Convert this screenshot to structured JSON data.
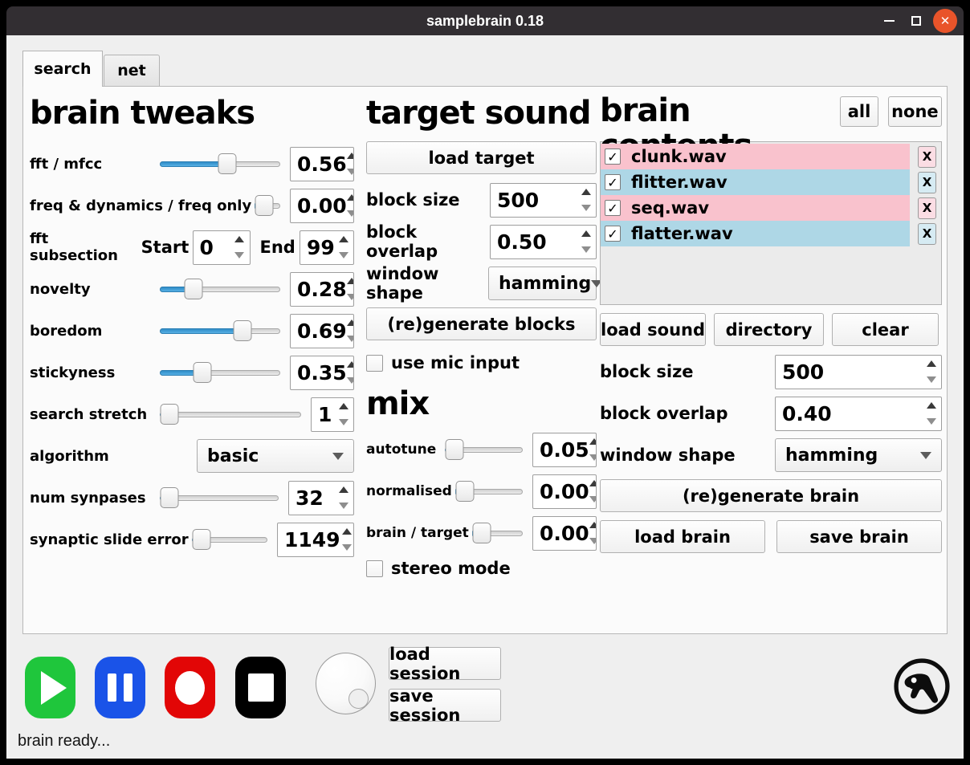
{
  "window": {
    "title": "samplebrain 0.18"
  },
  "icons": {
    "minimize": "minimize-icon",
    "maximize": "maximize-icon",
    "close": "✕",
    "checkmark": "✓",
    "remove": "X",
    "play": "play-triangle",
    "pause": "pause-bars",
    "record": "record-circle",
    "stop": "stop-square",
    "knob": "volume-knob",
    "logo": "aphex-twin-logo"
  },
  "tabs": {
    "search": "search",
    "net": "net"
  },
  "brain_tweaks": {
    "title": "brain tweaks",
    "fft_mfcc": {
      "label": "fft / mfcc",
      "value": "0.56",
      "fill": 56
    },
    "freq_dynamics": {
      "label": "freq & dynamics / freq only",
      "value": "0.00",
      "fill": 0
    },
    "fft_subsection": {
      "label": "fft subsection",
      "start_label": "Start",
      "start_value": "0",
      "end_label": "End",
      "end_value": "99"
    },
    "novelty": {
      "label": "novelty",
      "value": "0.28",
      "fill": 28
    },
    "boredom": {
      "label": "boredom",
      "value": "0.69",
      "fill": 69
    },
    "stickyness": {
      "label": "stickyness",
      "value": "0.35",
      "fill": 35
    },
    "search_stretch": {
      "label": "search stretch",
      "value": "1",
      "fill": 4
    },
    "algorithm": {
      "label": "algorithm",
      "value": "basic"
    },
    "num_synpases": {
      "label": "num synpases",
      "value": "32",
      "fill": 4
    },
    "synaptic_slide_error": {
      "label": "synaptic slide error",
      "value": "1149",
      "fill": 9
    }
  },
  "target_sound": {
    "title": "target sound",
    "load_target_label": "load target",
    "block_size": {
      "label": "block size",
      "value": "500"
    },
    "block_overlap": {
      "label": "block overlap",
      "value": "0.50"
    },
    "window_shape": {
      "label": "window shape",
      "value": "hamming"
    },
    "regenerate_label": "(re)generate blocks",
    "use_mic_label": "use mic input"
  },
  "mix": {
    "title": "mix",
    "autotune": {
      "label": "autotune",
      "value": "0.05",
      "fill": 7
    },
    "normalised": {
      "label": "normalised",
      "value": "0.00",
      "fill": 0
    },
    "brain_target": {
      "label": "brain / target",
      "value": "0.00",
      "fill": 0
    },
    "stereo_label": "stereo mode"
  },
  "brain_contents": {
    "title": "brain contents",
    "all_label": "all",
    "none_label": "none",
    "items": [
      {
        "name": "clunk.wav",
        "checked": true,
        "row_color": "#f9c2cd"
      },
      {
        "name": "flitter.wav",
        "checked": true,
        "row_color": "#aed7e6"
      },
      {
        "name": "seq.wav",
        "checked": true,
        "row_color": "#f9c2cd"
      },
      {
        "name": "flatter.wav",
        "checked": true,
        "row_color": "#aed7e6"
      }
    ],
    "load_sound_label": "load sound",
    "directory_label": "directory",
    "clear_label": "clear",
    "block_size": {
      "label": "block size",
      "value": "500"
    },
    "block_overlap": {
      "label": "block overlap",
      "value": "0.40"
    },
    "window_shape": {
      "label": "window shape",
      "value": "hamming"
    },
    "regenerate_label": "(re)generate brain",
    "load_brain_label": "load brain",
    "save_brain_label": "save brain"
  },
  "session": {
    "load_label": "load session",
    "save_label": "save session"
  },
  "status": "brain ready...",
  "colors": {
    "slider_fill": "#3d9bd5",
    "row_pink": "#f9c2cd",
    "row_blue": "#aed7e6",
    "play_green": "#1fc63c",
    "pause_blue": "#1a53e8",
    "record_red": "#e20606",
    "stop_black": "#000000",
    "titlebar": "#322e32",
    "close_orange": "#e9542a",
    "panel_bg": "#fbfbfb",
    "window_bg": "#efefef"
  }
}
